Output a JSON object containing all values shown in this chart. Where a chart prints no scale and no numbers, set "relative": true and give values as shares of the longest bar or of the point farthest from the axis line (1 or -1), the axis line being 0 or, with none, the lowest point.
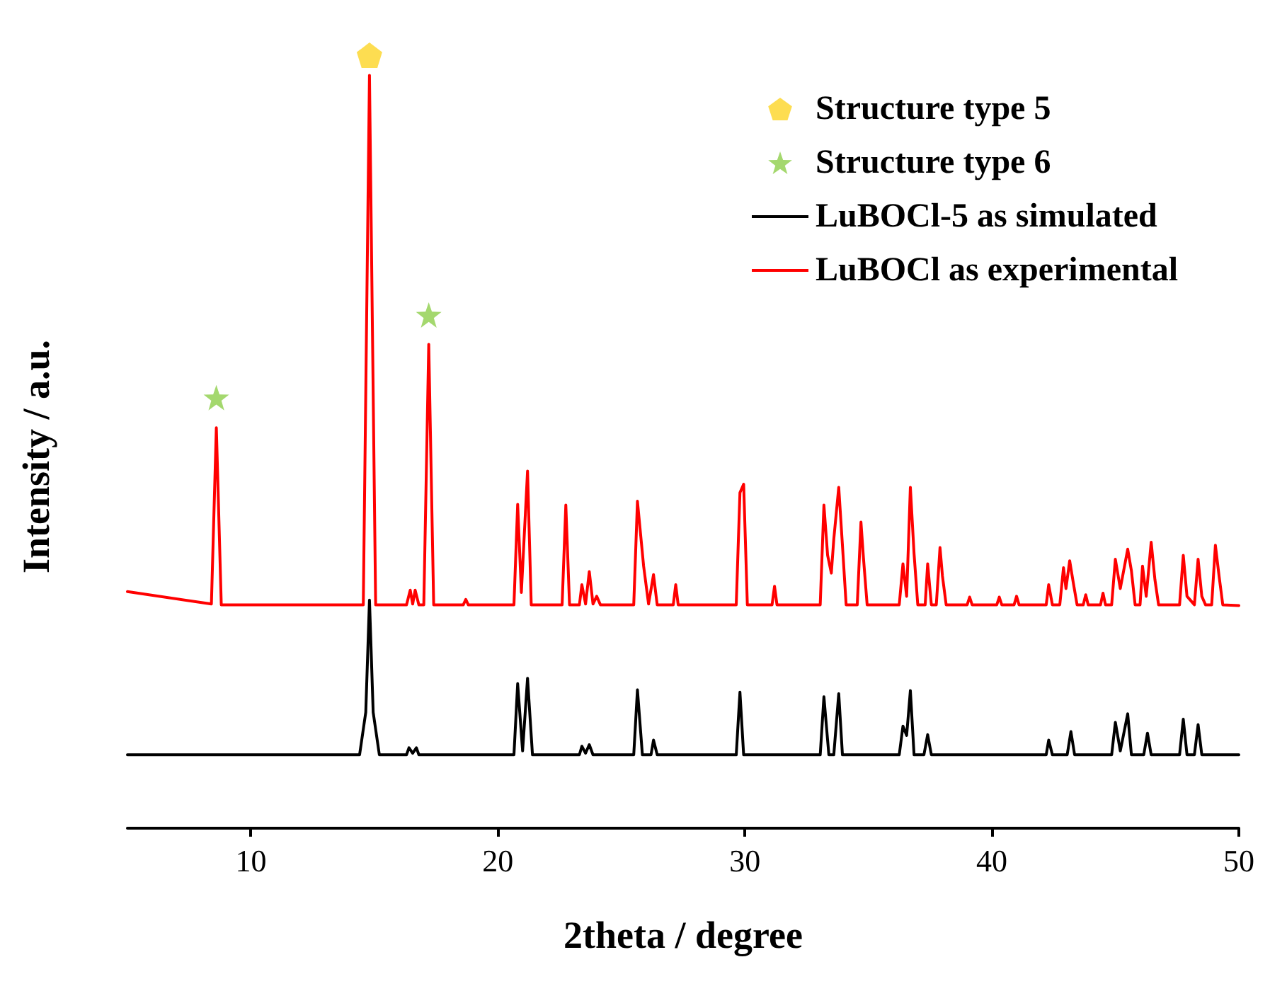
{
  "chart_data": {
    "type": "line",
    "relative": true,
    "xlabel": "2theta / degree",
    "ylabel": "Intensity / a.u.",
    "xlim": [
      5,
      50
    ],
    "xticks": [
      10,
      20,
      30,
      40,
      50
    ],
    "grid": false,
    "legend": "top right",
    "marker": "none",
    "line_style": "solid",
    "series": [
      {
        "name": "Structure type 5",
        "type": "scatter",
        "color": "#fcd425",
        "x": [
          14.8
        ],
        "values": [
          1.0
        ]
      },
      {
        "name": "Structure type 6",
        "type": "scatter",
        "marker": "star",
        "color": "#8dce4a",
        "x": [
          8.6,
          17.2
        ],
        "values": [
          0.557,
          0.664
        ]
      },
      {
        "name": "LuBOCl-5 as simulated",
        "color": "#000000",
        "x": [
          5,
          14.4,
          14.65,
          14.8,
          14.95,
          15.2,
          16.3,
          16.4,
          16.55,
          16.7,
          16.8,
          20.65,
          20.8,
          21.0,
          21.2,
          21.4,
          23.3,
          23.4,
          23.55,
          23.7,
          23.85,
          25.5,
          25.65,
          25.85,
          26.2,
          26.3,
          26.45,
          29.65,
          29.8,
          29.95,
          33.05,
          33.2,
          33.4,
          33.6,
          33.8,
          33.95,
          36.25,
          36.4,
          36.55,
          36.7,
          36.85,
          37.25,
          37.4,
          37.55,
          42.2,
          42.3,
          42.45,
          43.05,
          43.2,
          43.35,
          44.85,
          45.0,
          45.2,
          45.5,
          45.65,
          46.15,
          46.3,
          46.45,
          47.6,
          47.75,
          47.9,
          48.2,
          48.35,
          48.5,
          50
        ],
        "values": [
          0.095,
          0.095,
          0.15,
          0.295,
          0.15,
          0.095,
          0.095,
          0.104,
          0.097,
          0.104,
          0.095,
          0.095,
          0.187,
          0.1,
          0.194,
          0.095,
          0.095,
          0.106,
          0.097,
          0.108,
          0.095,
          0.095,
          0.179,
          0.095,
          0.095,
          0.114,
          0.095,
          0.095,
          0.176,
          0.095,
          0.095,
          0.17,
          0.095,
          0.095,
          0.174,
          0.095,
          0.095,
          0.132,
          0.12,
          0.178,
          0.095,
          0.095,
          0.121,
          0.095,
          0.095,
          0.114,
          0.095,
          0.095,
          0.125,
          0.095,
          0.095,
          0.137,
          0.1,
          0.148,
          0.095,
          0.095,
          0.123,
          0.095,
          0.095,
          0.141,
          0.095,
          0.095,
          0.134,
          0.095,
          0.095
        ]
      },
      {
        "name": "LuBOCl as experimental",
        "color": "#ff0000",
        "x": [
          5,
          8.4,
          8.6,
          8.8,
          14.55,
          14.8,
          15.05,
          16.3,
          16.45,
          16.55,
          16.65,
          16.8,
          17.0,
          17.2,
          17.4,
          18.6,
          18.7,
          18.8,
          20.65,
          20.8,
          20.95,
          21.2,
          21.35,
          22.6,
          22.75,
          22.9,
          23.3,
          23.4,
          23.55,
          23.7,
          23.85,
          24.0,
          24.15,
          25.5,
          25.65,
          25.9,
          26.1,
          26.3,
          26.45,
          27.1,
          27.2,
          27.3,
          29.65,
          29.8,
          29.95,
          30.1,
          31.1,
          31.2,
          31.3,
          33.05,
          33.2,
          33.35,
          33.5,
          33.6,
          33.8,
          33.95,
          34.1,
          34.55,
          34.7,
          34.8,
          34.95,
          36.25,
          36.4,
          36.55,
          36.7,
          36.85,
          37.0,
          37.3,
          37.4,
          37.55,
          37.75,
          37.9,
          38.0,
          38.15,
          39.0,
          39.1,
          39.2,
          40.2,
          40.3,
          40.4,
          40.9,
          41.0,
          41.1,
          42.2,
          42.3,
          42.45,
          42.75,
          42.9,
          43.0,
          43.15,
          43.3,
          43.45,
          43.7,
          43.8,
          43.9,
          44.4,
          44.5,
          44.6,
          44.85,
          45.0,
          45.2,
          45.5,
          45.65,
          45.8,
          46.0,
          46.1,
          46.25,
          46.45,
          46.6,
          46.75,
          47.6,
          47.75,
          47.9,
          48.2,
          48.35,
          48.5,
          48.65,
          48.9,
          49.05,
          49.2,
          49.35,
          50
        ],
        "values": [
          0.306,
          0.29,
          0.518,
          0.289,
          0.289,
          0.974,
          0.289,
          0.289,
          0.308,
          0.29,
          0.308,
          0.289,
          0.289,
          0.626,
          0.289,
          0.289,
          0.296,
          0.289,
          0.289,
          0.419,
          0.305,
          0.462,
          0.289,
          0.289,
          0.418,
          0.289,
          0.289,
          0.315,
          0.29,
          0.332,
          0.29,
          0.3,
          0.289,
          0.289,
          0.423,
          0.339,
          0.29,
          0.328,
          0.289,
          0.289,
          0.315,
          0.289,
          0.289,
          0.434,
          0.445,
          0.289,
          0.289,
          0.313,
          0.289,
          0.289,
          0.418,
          0.353,
          0.33,
          0.374,
          0.441,
          0.366,
          0.289,
          0.289,
          0.396,
          0.35,
          0.289,
          0.289,
          0.342,
          0.3,
          0.441,
          0.355,
          0.289,
          0.289,
          0.342,
          0.289,
          0.289,
          0.363,
          0.326,
          0.289,
          0.289,
          0.299,
          0.289,
          0.289,
          0.299,
          0.289,
          0.289,
          0.3,
          0.289,
          0.289,
          0.315,
          0.289,
          0.289,
          0.337,
          0.31,
          0.346,
          0.317,
          0.289,
          0.289,
          0.302,
          0.289,
          0.289,
          0.304,
          0.289,
          0.289,
          0.348,
          0.31,
          0.361,
          0.333,
          0.289,
          0.289,
          0.339,
          0.3,
          0.37,
          0.322,
          0.289,
          0.289,
          0.353,
          0.3,
          0.289,
          0.348,
          0.3,
          0.289,
          0.289,
          0.366,
          0.326,
          0.289,
          0.288
        ]
      }
    ]
  }
}
